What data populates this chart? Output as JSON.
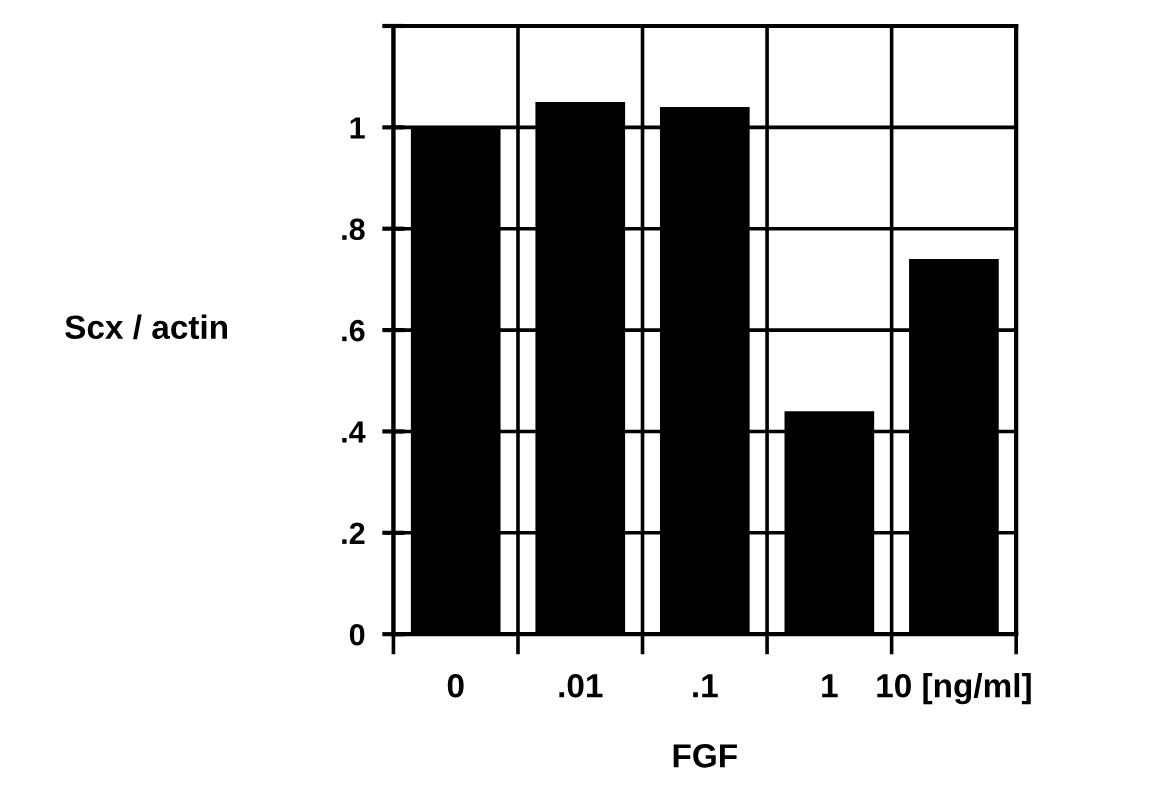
{
  "chart_data": {
    "type": "bar",
    "xlabel": "FGF",
    "ylabel": "Scx / actin",
    "categories": [
      "0",
      ".01",
      ".1",
      "1",
      "10 [ng/ml]"
    ],
    "values": [
      1.0,
      1.05,
      1.04,
      0.44,
      0.74
    ],
    "color": "#000000",
    "ylim": [
      0,
      1.2
    ],
    "yticks": [
      {
        "value": 0,
        "label": "0"
      },
      {
        "value": 0.2,
        "label": ".2"
      },
      {
        "value": 0.4,
        "label": ".4"
      },
      {
        "value": 0.6,
        "label": ".6"
      },
      {
        "value": 0.8,
        "label": ".8"
      },
      {
        "value": 1,
        "label": "1"
      },
      {
        "value": 1.2,
        "label": null
      }
    ],
    "grid": true,
    "legend": false
  }
}
